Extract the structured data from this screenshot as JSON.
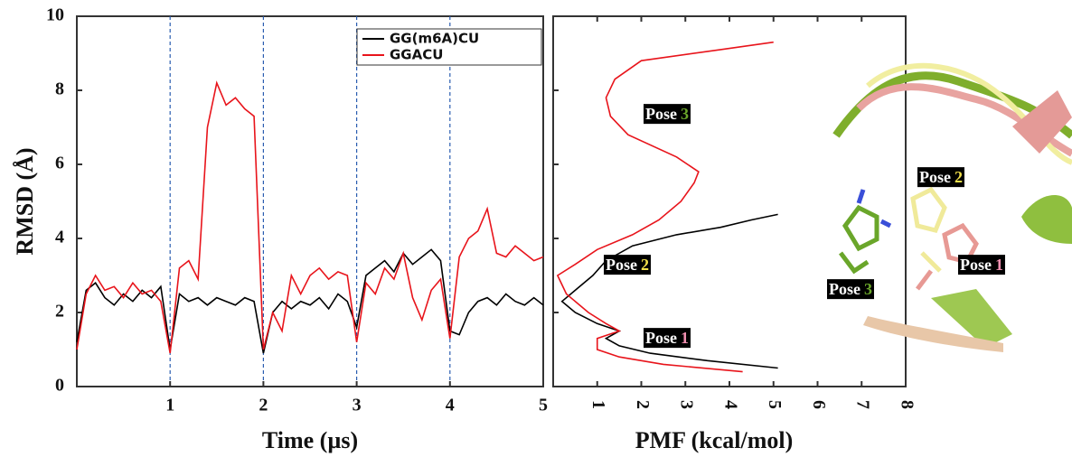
{
  "chart_data": [
    {
      "type": "line",
      "xlabel": "Time (µs)",
      "ylabel": "RMSD (Å)",
      "xlim": [
        0,
        5
      ],
      "xticks": [
        1,
        2,
        3,
        4,
        5
      ],
      "ylim": [
        0,
        10
      ],
      "yticks": [
        0,
        2,
        4,
        6,
        8,
        10
      ],
      "vlines": [
        1,
        2,
        3,
        4
      ],
      "vline_color": "#2a5db0",
      "legend": "upper right",
      "x": [
        0,
        0.1,
        0.2,
        0.3,
        0.4,
        0.5,
        0.6,
        0.7,
        0.8,
        0.9,
        1.0,
        1.1,
        1.2,
        1.3,
        1.4,
        1.5,
        1.6,
        1.7,
        1.8,
        1.9,
        2.0,
        2.1,
        2.2,
        2.3,
        2.4,
        2.5,
        2.6,
        2.7,
        2.8,
        2.9,
        3.0,
        3.1,
        3.2,
        3.3,
        3.4,
        3.5,
        3.6,
        3.7,
        3.8,
        3.9,
        4.0,
        4.1,
        4.2,
        4.3,
        4.4,
        4.5,
        4.6,
        4.7,
        4.8,
        4.9,
        5.0
      ],
      "series": [
        {
          "name": "GG(m6A)CU",
          "color": "#000000",
          "values": [
            1.2,
            2.6,
            2.8,
            2.4,
            2.2,
            2.5,
            2.3,
            2.6,
            2.4,
            2.7,
            1.0,
            2.5,
            2.3,
            2.4,
            2.2,
            2.4,
            2.3,
            2.2,
            2.4,
            2.3,
            0.9,
            2.0,
            2.3,
            2.1,
            2.3,
            2.2,
            2.4,
            2.1,
            2.5,
            2.3,
            1.6,
            3.0,
            3.2,
            3.4,
            3.1,
            3.6,
            3.3,
            3.5,
            3.7,
            3.4,
            1.5,
            1.4,
            2.0,
            2.3,
            2.4,
            2.2,
            2.5,
            2.3,
            2.2,
            2.4,
            2.2
          ]
        },
        {
          "name": "GGACU",
          "color": "#e8141b",
          "values": [
            1.0,
            2.5,
            3.0,
            2.6,
            2.7,
            2.4,
            2.8,
            2.5,
            2.6,
            2.3,
            0.9,
            3.2,
            3.4,
            2.9,
            7.0,
            8.2,
            7.6,
            7.8,
            7.5,
            7.3,
            1.0,
            2.0,
            1.5,
            3.0,
            2.5,
            3.0,
            3.2,
            2.9,
            3.1,
            3.0,
            1.2,
            2.8,
            2.5,
            3.2,
            2.9,
            3.6,
            2.4,
            1.8,
            2.6,
            2.9,
            1.3,
            3.5,
            4.0,
            4.2,
            4.8,
            3.6,
            3.5,
            3.8,
            3.6,
            3.4,
            3.5
          ]
        }
      ]
    },
    {
      "type": "profile",
      "xlabel": "PMF (kcal/mol)",
      "xlim": [
        0,
        8
      ],
      "xticks": [
        1,
        2,
        3,
        4,
        5,
        6,
        7,
        8
      ],
      "ylim": [
        0,
        10
      ],
      "yticks": [
        0,
        2,
        4,
        6,
        8,
        10
      ],
      "series": [
        {
          "name": "GG(m6A)CU",
          "color": "#000000",
          "rmsd": [
            0.5,
            0.7,
            0.9,
            1.1,
            1.3,
            1.5,
            1.7,
            2.0,
            2.3,
            2.6,
            3.0,
            3.4,
            3.8,
            4.1,
            4.3,
            4.5,
            4.65
          ],
          "pmf": [
            5.1,
            3.5,
            2.2,
            1.5,
            1.2,
            1.5,
            1.0,
            0.5,
            0.2,
            0.5,
            0.9,
            1.2,
            1.8,
            2.8,
            3.8,
            4.5,
            5.1
          ]
        },
        {
          "name": "GGACU",
          "color": "#e8141b",
          "rmsd": [
            0.4,
            0.6,
            0.8,
            1.0,
            1.3,
            1.5,
            1.7,
            2.0,
            2.5,
            3.0,
            3.3,
            3.7,
            4.1,
            4.5,
            5.0,
            5.5,
            5.8,
            6.2,
            6.8,
            7.3,
            7.8,
            8.3,
            8.8,
            9.1,
            9.3
          ],
          "pmf": [
            4.3,
            2.5,
            1.5,
            1.0,
            1.0,
            1.5,
            1.2,
            0.8,
            0.3,
            0.1,
            0.5,
            1.0,
            1.8,
            2.4,
            2.9,
            3.2,
            3.3,
            2.8,
            1.7,
            1.3,
            1.2,
            1.4,
            2.0,
            3.8,
            5.0
          ]
        }
      ],
      "annotations": [
        {
          "word": "Pose",
          "number": "3",
          "color": "#6aa62a"
        },
        {
          "word": "Pose",
          "number": "2",
          "color": "#f2e04a"
        },
        {
          "word": "Pose",
          "number": "1",
          "color": "#f08fb0"
        }
      ]
    }
  ],
  "image_labels": [
    {
      "word": "Pose",
      "number": "2",
      "color": "#f2e04a"
    },
    {
      "word": "Pose",
      "number": "1",
      "color": "#f08fb0"
    },
    {
      "word": "Pose",
      "number": "3",
      "color": "#6aa62a"
    }
  ]
}
